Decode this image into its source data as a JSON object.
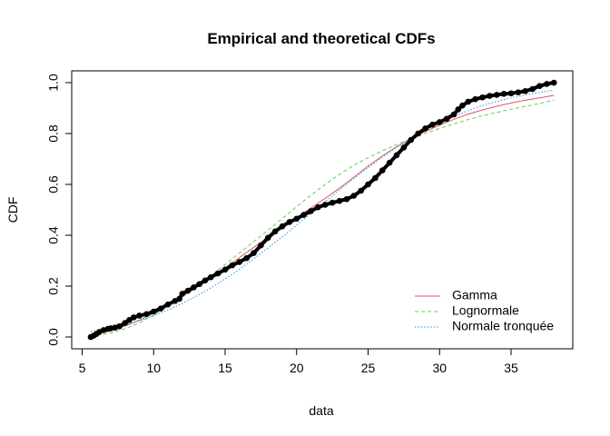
{
  "chart_data": {
    "type": "line",
    "title": "Empirical and theoretical CDFs",
    "xlabel": "data",
    "ylabel": "CDF",
    "xlim": [
      5,
      38.5
    ],
    "ylim": [
      0,
      1
    ],
    "xticks": [
      5,
      10,
      15,
      20,
      25,
      30,
      35
    ],
    "yticks": [
      0.0,
      0.2,
      0.4,
      0.6,
      0.8,
      1.0
    ],
    "ytick_labels": [
      "0.0",
      "0.2",
      "0.4",
      "0.6",
      "0.8",
      "1.0"
    ],
    "grid": false,
    "legend_position": "bottom-right",
    "empirical": {
      "marker": "filled-circle",
      "color": "#000000",
      "points": [
        [
          5.6,
          0.0
        ],
        [
          5.8,
          0.005
        ],
        [
          6.0,
          0.012
        ],
        [
          6.2,
          0.02
        ],
        [
          6.5,
          0.027
        ],
        [
          6.8,
          0.032
        ],
        [
          7.0,
          0.034
        ],
        [
          7.3,
          0.037
        ],
        [
          7.6,
          0.042
        ],
        [
          8.0,
          0.055
        ],
        [
          8.3,
          0.067
        ],
        [
          8.6,
          0.077
        ],
        [
          9.0,
          0.084
        ],
        [
          9.5,
          0.09
        ],
        [
          10.0,
          0.1
        ],
        [
          10.5,
          0.112
        ],
        [
          11.0,
          0.128
        ],
        [
          11.5,
          0.142
        ],
        [
          11.8,
          0.15
        ],
        [
          12.0,
          0.17
        ],
        [
          12.4,
          0.182
        ],
        [
          12.8,
          0.195
        ],
        [
          13.2,
          0.208
        ],
        [
          13.6,
          0.222
        ],
        [
          14.0,
          0.235
        ],
        [
          14.5,
          0.25
        ],
        [
          15.0,
          0.265
        ],
        [
          15.5,
          0.282
        ],
        [
          16.0,
          0.295
        ],
        [
          16.5,
          0.31
        ],
        [
          17.0,
          0.33
        ],
        [
          17.5,
          0.36
        ],
        [
          18.0,
          0.39
        ],
        [
          18.5,
          0.415
        ],
        [
          19.0,
          0.435
        ],
        [
          19.5,
          0.452
        ],
        [
          20.0,
          0.465
        ],
        [
          20.5,
          0.48
        ],
        [
          21.0,
          0.495
        ],
        [
          21.5,
          0.51
        ],
        [
          22.0,
          0.52
        ],
        [
          22.5,
          0.528
        ],
        [
          23.0,
          0.535
        ],
        [
          23.5,
          0.542
        ],
        [
          24.0,
          0.555
        ],
        [
          24.5,
          0.575
        ],
        [
          25.0,
          0.6
        ],
        [
          25.5,
          0.625
        ],
        [
          26.0,
          0.655
        ],
        [
          26.5,
          0.685
        ],
        [
          27.0,
          0.715
        ],
        [
          27.5,
          0.745
        ],
        [
          28.0,
          0.775
        ],
        [
          28.5,
          0.8
        ],
        [
          29.0,
          0.82
        ],
        [
          29.5,
          0.835
        ],
        [
          30.0,
          0.845
        ],
        [
          30.5,
          0.858
        ],
        [
          31.0,
          0.875
        ],
        [
          31.3,
          0.895
        ],
        [
          31.6,
          0.91
        ],
        [
          32.0,
          0.925
        ],
        [
          32.5,
          0.935
        ],
        [
          33.0,
          0.942
        ],
        [
          33.5,
          0.948
        ],
        [
          34.0,
          0.952
        ],
        [
          34.5,
          0.956
        ],
        [
          35.0,
          0.958
        ],
        [
          35.5,
          0.962
        ],
        [
          36.0,
          0.967
        ],
        [
          36.5,
          0.975
        ],
        [
          37.0,
          0.987
        ],
        [
          37.5,
          0.995
        ],
        [
          38.0,
          1.0
        ]
      ]
    },
    "series": [
      {
        "name": "Gamma",
        "color": "#DF536B",
        "dash": "solid",
        "x": [
          5.6,
          6,
          7,
          8,
          9,
          10,
          11,
          12,
          13,
          14,
          15,
          16,
          17,
          18,
          19,
          20,
          21,
          22,
          23,
          24,
          25,
          26,
          27,
          28,
          29,
          30,
          31,
          32,
          33,
          34,
          35,
          36,
          37,
          38
        ],
        "values": [
          0.008,
          0.012,
          0.025,
          0.043,
          0.066,
          0.093,
          0.124,
          0.158,
          0.195,
          0.233,
          0.272,
          0.312,
          0.352,
          0.392,
          0.431,
          0.469,
          0.507,
          0.545,
          0.585,
          0.628,
          0.672,
          0.712,
          0.748,
          0.78,
          0.808,
          0.833,
          0.856,
          0.876,
          0.893,
          0.907,
          0.92,
          0.931,
          0.94,
          0.95
        ]
      },
      {
        "name": "Lognormale",
        "color": "#61D04F",
        "dash": "dashed",
        "x": [
          5.6,
          6,
          7,
          8,
          9,
          10,
          11,
          12,
          13,
          14,
          15,
          16,
          17,
          18,
          19,
          20,
          21,
          22,
          23,
          24,
          25,
          26,
          27,
          28,
          29,
          30,
          31,
          32,
          33,
          34,
          35,
          36,
          37,
          38
        ],
        "values": [
          0.003,
          0.006,
          0.016,
          0.033,
          0.056,
          0.086,
          0.12,
          0.158,
          0.199,
          0.241,
          0.285,
          0.33,
          0.375,
          0.42,
          0.466,
          0.512,
          0.557,
          0.6,
          0.64,
          0.675,
          0.705,
          0.732,
          0.757,
          0.78,
          0.801,
          0.82,
          0.838,
          0.855,
          0.87,
          0.883,
          0.895,
          0.907,
          0.918,
          0.932
        ]
      },
      {
        "name": "Normale tronquée",
        "color": "#2297E6",
        "dash": "dotted",
        "x": [
          5.6,
          6,
          7,
          8,
          9,
          10,
          11,
          12,
          13,
          14,
          15,
          16,
          17,
          18,
          19,
          20,
          21,
          22,
          23,
          24,
          25,
          26,
          27,
          28,
          29,
          30,
          31,
          32,
          33,
          34,
          35,
          36,
          37,
          38
        ],
        "values": [
          0.022,
          0.026,
          0.036,
          0.048,
          0.064,
          0.083,
          0.106,
          0.132,
          0.161,
          0.193,
          0.228,
          0.266,
          0.307,
          0.35,
          0.394,
          0.44,
          0.486,
          0.532,
          0.578,
          0.623,
          0.666,
          0.707,
          0.745,
          0.781,
          0.813,
          0.842,
          0.868,
          0.89,
          0.91,
          0.926,
          0.94,
          0.952,
          0.962,
          0.97
        ]
      }
    ]
  }
}
